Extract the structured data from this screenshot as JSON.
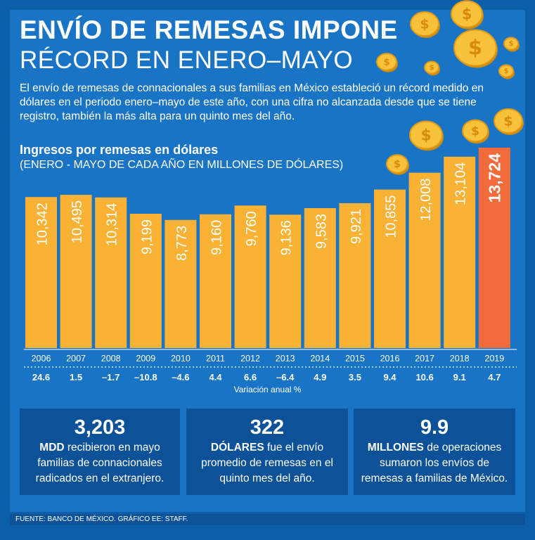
{
  "title_line1": "ENVÍO DE REMESAS IMPONE",
  "title_line2": "RÉCORD EN ENERO–MAYO",
  "intro": "El envío de remesas de connacionales a sus familias en México estableció un récord medido en dólares en el periodo enero–mayo de este año, con una cifra no alcanzada desde que se tiene registro, también la más alta para un quinto mes del año.",
  "chart_data": {
    "type": "bar",
    "title": "Ingresos por remesas en dólares",
    "subtitle": "(ENERO - MAYO DE CADA AÑO EN MILLONES DE DÓLARES)",
    "categories": [
      "2006",
      "2007",
      "2008",
      "2009",
      "2010",
      "2011",
      "2012",
      "2013",
      "2014",
      "2015",
      "2016",
      "2017",
      "2018",
      "2019"
    ],
    "values": [
      10342,
      10495,
      10314,
      9199,
      8773,
      9160,
      9760,
      9136,
      9583,
      9921,
      10855,
      12008,
      13104,
      13724
    ],
    "value_labels": [
      "10,342",
      "10,495",
      "10,314",
      "9,199",
      "8,773",
      "9,160",
      "9,760",
      "9,136",
      "9,583",
      "9,921",
      "10,855",
      "12,008",
      "13,104",
      "13,724"
    ],
    "annual_change": [
      "24.6",
      "1.5",
      "–1.7",
      "–10.8",
      "–4.6",
      "4.4",
      "6.6",
      "–6.4",
      "4.9",
      "3.5",
      "9.4",
      "10.6",
      "9.1",
      "4.7"
    ],
    "annual_change_label": "Variación anual %",
    "ylim": [
      0,
      13724
    ],
    "bar_color": "#f9b233",
    "highlight_color": "#f26b3a",
    "highlight_index": 13
  },
  "stats": [
    {
      "value": "3,203",
      "bold": "MDD",
      "text": " recibieron en mayo familias de connacionales radicados en el extranjero."
    },
    {
      "value": "322",
      "bold": "DÓLARES",
      "text": " fue el envío promedio de remesas en el quinto mes del año."
    },
    {
      "value": "9.9",
      "bold": "MILLONES",
      "text": " de operaciones sumaron los envíos de remesas a familias de México."
    }
  ],
  "footer": "FUENTE: BANCO DE MÉXICO. GRÁFICO EE: STAFF."
}
